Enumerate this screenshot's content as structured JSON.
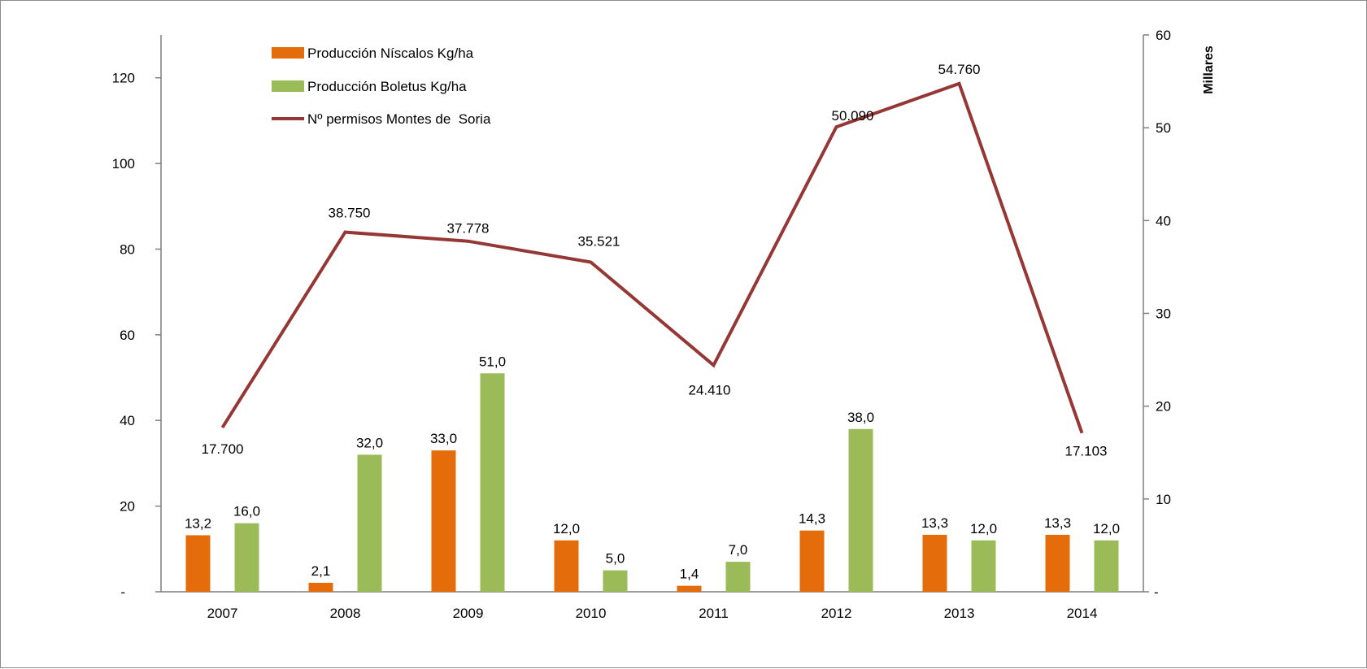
{
  "chart_data": {
    "type": "bar",
    "categories": [
      "2007",
      "2008",
      "2009",
      "2010",
      "2011",
      "2012",
      "2013",
      "2014"
    ],
    "series": [
      {
        "name": "Producción Níscalos Kg/ha",
        "type": "bar",
        "axis": "left",
        "color": "#e46c0a",
        "values": [
          13.2,
          2.1,
          33.0,
          12.0,
          1.4,
          14.3,
          13.3,
          13.3
        ],
        "labels": [
          "13,2",
          "2,1",
          "33,0",
          "12,0",
          "1,4",
          "14,3",
          "13,3",
          "13,3"
        ]
      },
      {
        "name": "Producción Boletus Kg/ha",
        "type": "bar",
        "axis": "left",
        "color": "#9bbb59",
        "values": [
          16.0,
          32.0,
          51.0,
          5.0,
          7.0,
          38.0,
          12.0,
          12.0
        ],
        "labels": [
          "16,0",
          "32,0",
          "51,0",
          "5,0",
          "7,0",
          "38,0",
          "12,0",
          "12,0"
        ]
      },
      {
        "name": "Nº permisos Montes de  Soria",
        "type": "line",
        "axis": "right",
        "color": "#953735",
        "values": [
          17.7,
          38.75,
          37.778,
          35.521,
          24.41,
          50.09,
          54.76,
          17.103
        ],
        "labels": [
          "17.700",
          "38.750",
          "37.778",
          "35.521",
          "24.410",
          "50.090",
          "54.760",
          "17.103"
        ]
      }
    ],
    "left_axis": {
      "ylim": [
        0,
        130
      ],
      "ticks": [
        "-",
        "20",
        "40",
        "60",
        "80",
        "100",
        "120"
      ]
    },
    "right_axis": {
      "ylim": [
        0,
        60
      ],
      "ticks": [
        "-",
        "10",
        "20",
        "30",
        "40",
        "50",
        "60"
      ],
      "title": "Millares"
    },
    "legend": "top-left"
  }
}
